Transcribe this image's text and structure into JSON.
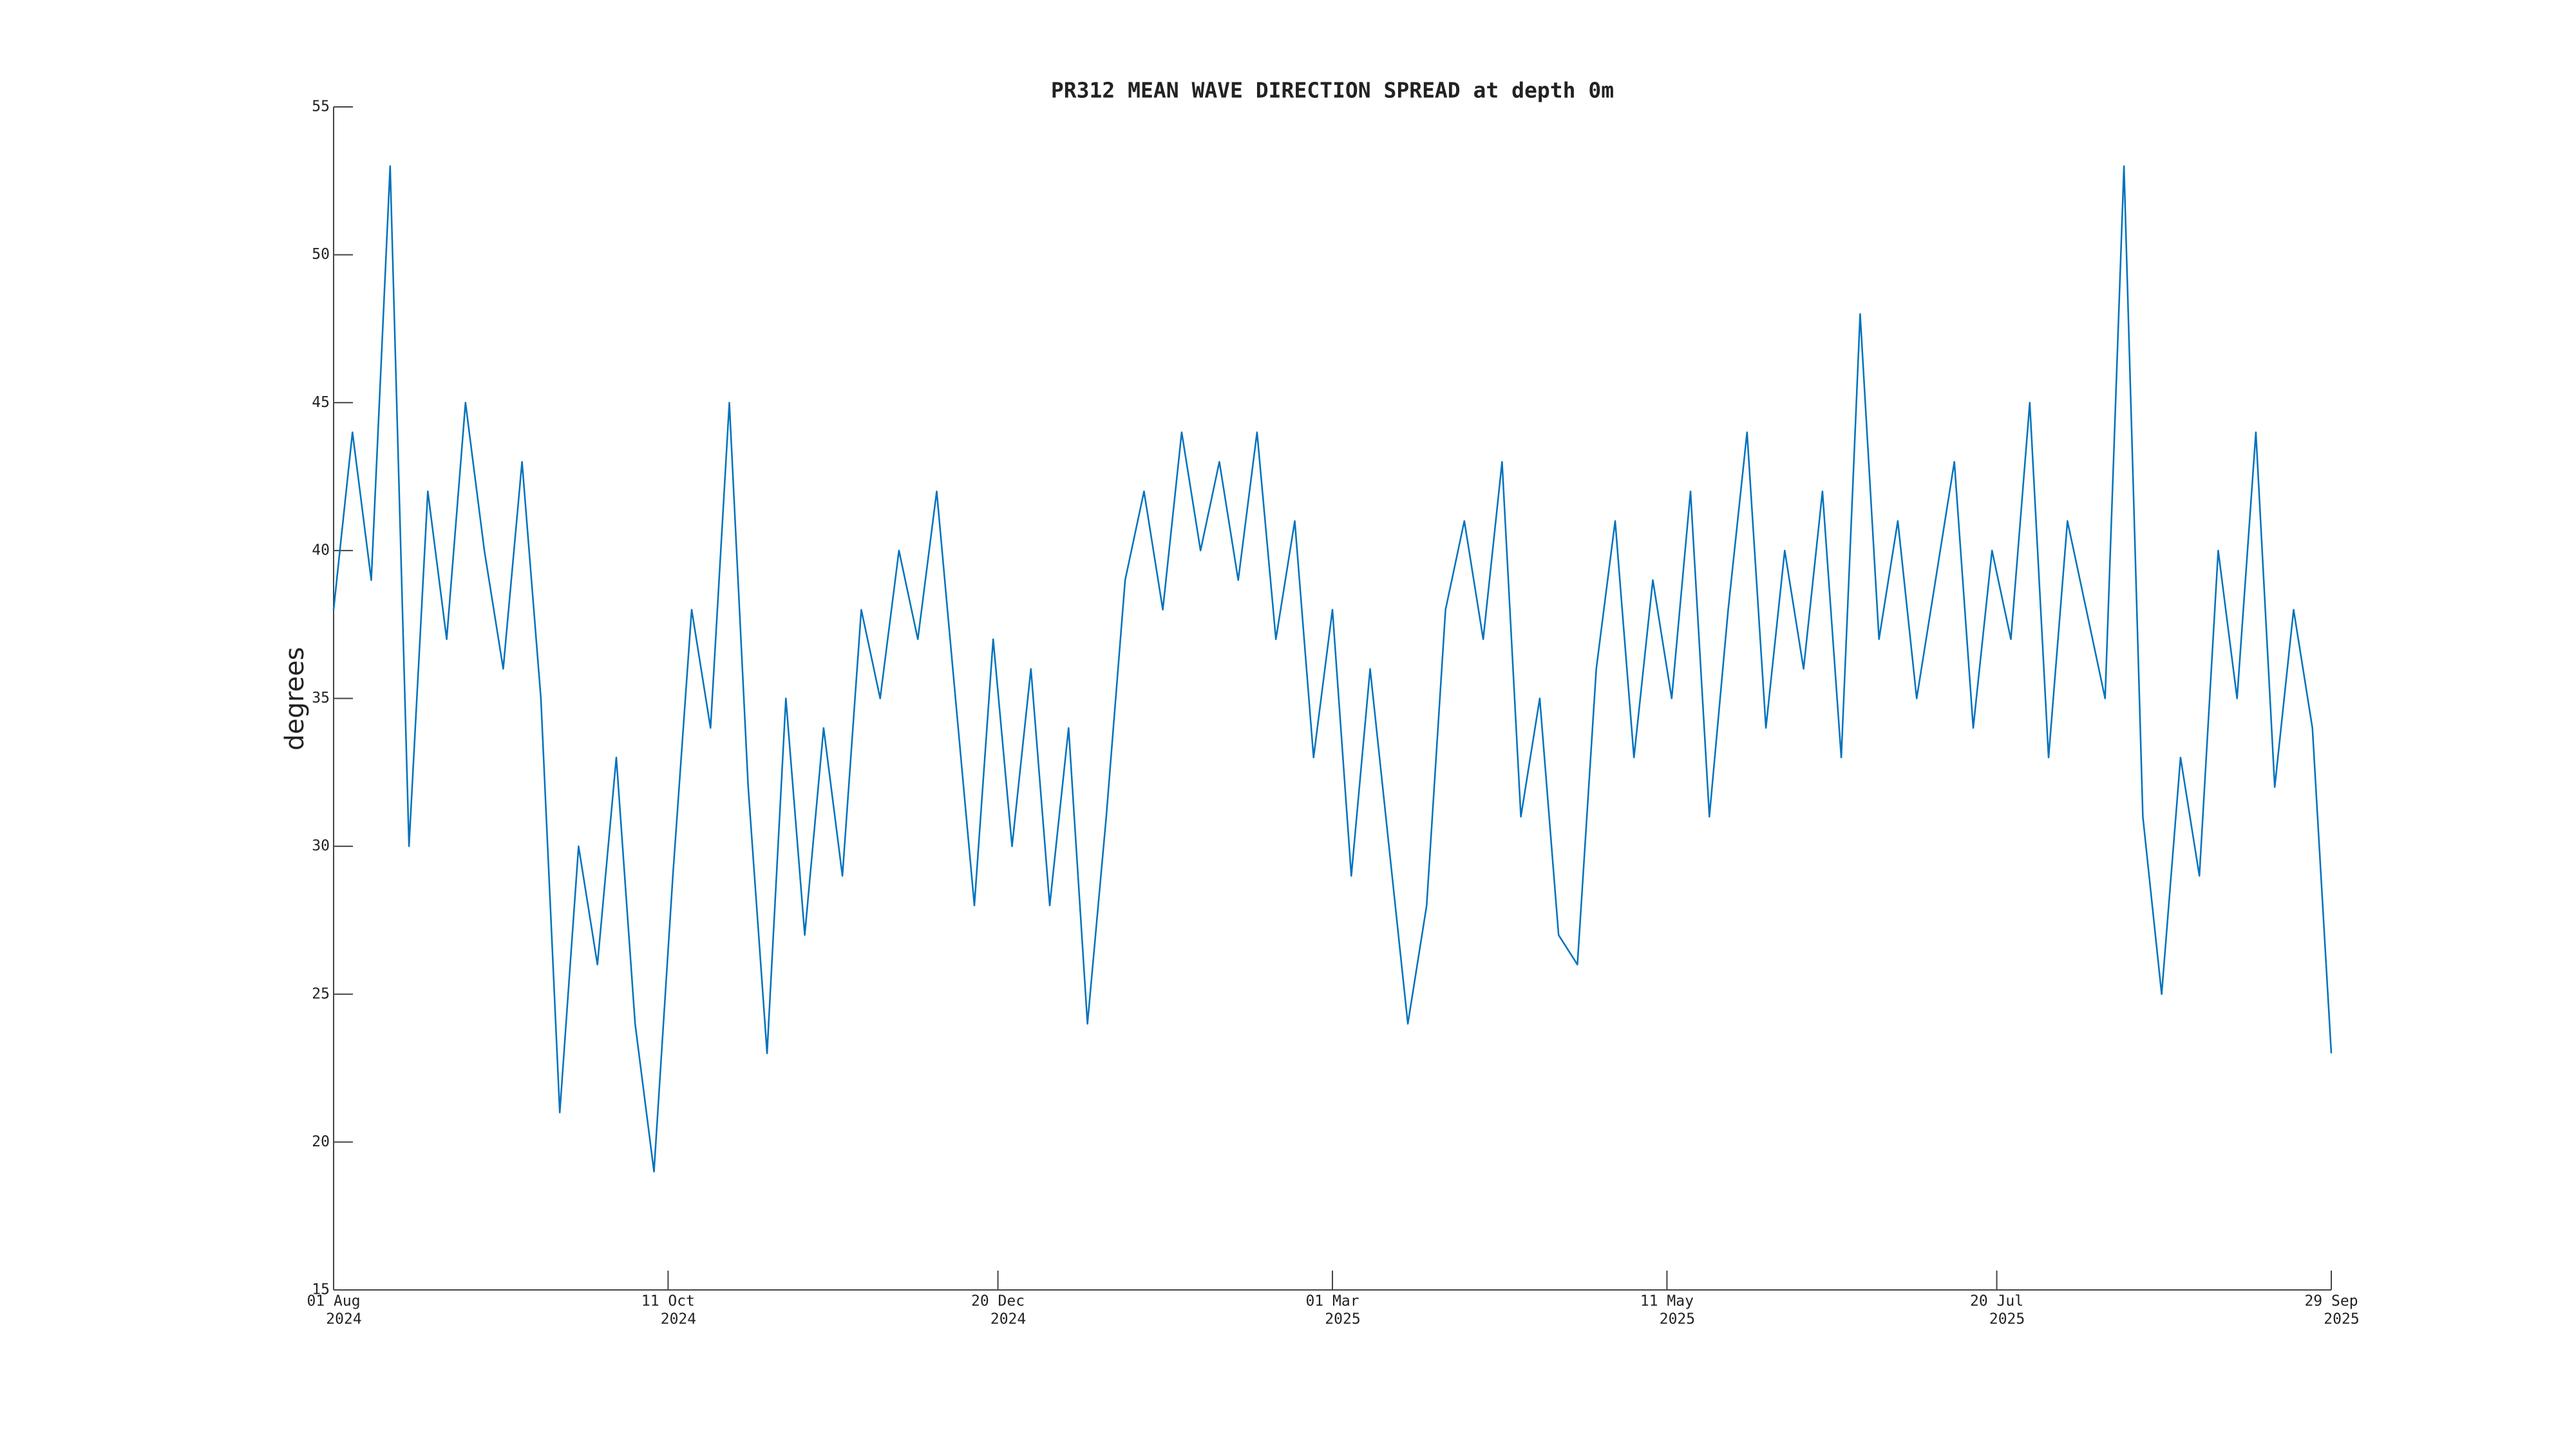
{
  "chart_data": {
    "type": "line",
    "title": "PR312 MEAN WAVE DIRECTION SPREAD at depth 0m",
    "y_label": "degrees",
    "x": [
      "2024-08-01",
      "2024-08-05",
      "2024-08-09",
      "2024-08-13",
      "2024-08-17",
      "2024-08-21",
      "2024-08-25",
      "2024-08-29",
      "2024-09-02",
      "2024-09-06",
      "2024-09-10",
      "2024-09-14",
      "2024-09-18",
      "2024-09-22",
      "2024-09-26",
      "2024-09-30",
      "2024-10-04",
      "2024-10-08",
      "2024-10-12",
      "2024-10-16",
      "2024-10-20",
      "2024-10-24",
      "2024-10-28",
      "2024-11-01",
      "2024-11-05",
      "2024-11-09",
      "2024-11-13",
      "2024-11-17",
      "2024-11-21",
      "2024-11-25",
      "2024-11-29",
      "2024-12-03",
      "2024-12-07",
      "2024-12-11",
      "2024-12-15",
      "2024-12-19",
      "2024-12-23",
      "2024-12-27",
      "2024-12-31",
      "2025-01-04",
      "2025-01-08",
      "2025-01-12",
      "2025-01-16",
      "2025-01-20",
      "2025-01-24",
      "2025-01-28",
      "2025-02-01",
      "2025-02-05",
      "2025-02-09",
      "2025-02-13",
      "2025-02-17",
      "2025-02-21",
      "2025-02-25",
      "2025-03-01",
      "2025-03-05",
      "2025-03-09",
      "2025-03-13",
      "2025-03-17",
      "2025-03-21",
      "2025-03-25",
      "2025-03-29",
      "2025-04-02",
      "2025-04-06",
      "2025-04-10",
      "2025-04-14",
      "2025-04-18",
      "2025-04-22",
      "2025-04-26",
      "2025-04-30",
      "2025-05-04",
      "2025-05-08",
      "2025-05-12",
      "2025-05-16",
      "2025-05-20",
      "2025-05-24",
      "2025-05-28",
      "2025-06-01",
      "2025-06-05",
      "2025-06-09",
      "2025-06-13",
      "2025-06-17",
      "2025-06-21",
      "2025-06-25",
      "2025-06-29",
      "2025-07-03",
      "2025-07-07",
      "2025-07-11",
      "2025-07-15",
      "2025-07-19",
      "2025-07-23",
      "2025-07-27",
      "2025-07-31",
      "2025-08-04",
      "2025-08-08",
      "2025-08-12",
      "2025-08-16",
      "2025-08-20",
      "2025-08-24",
      "2025-08-28",
      "2025-09-01",
      "2025-09-05",
      "2025-09-09",
      "2025-09-13",
      "2025-09-17",
      "2025-09-21",
      "2025-09-25",
      "2025-09-29"
    ],
    "series": [
      {
        "name": "degrees",
        "color": "#0072bd",
        "values": [
          38,
          44,
          39,
          53,
          30,
          42,
          37,
          45,
          40,
          36,
          43,
          35,
          21,
          30,
          26,
          33,
          24,
          19,
          29,
          38,
          34,
          45,
          32,
          23,
          35,
          27,
          34,
          29,
          38,
          35,
          40,
          37,
          42,
          35,
          28,
          37,
          30,
          36,
          28,
          34,
          24,
          31,
          39,
          42,
          38,
          44,
          40,
          43,
          39,
          44,
          37,
          41,
          33,
          38,
          29,
          36,
          30,
          24,
          28,
          38,
          41,
          37,
          43,
          31,
          35,
          27,
          26,
          36,
          41,
          33,
          39,
          35,
          42,
          31,
          38,
          44,
          34,
          40,
          36,
          42,
          33,
          48,
          37,
          41,
          35,
          39,
          43,
          34,
          40,
          37,
          45,
          33,
          41,
          38,
          35,
          53,
          31,
          25,
          33,
          29,
          40,
          35,
          44,
          32,
          38,
          34,
          23
        ]
      }
    ],
    "xlim": [
      "2024-08-01",
      "2025-09-29"
    ],
    "xticks": [
      {
        "value": "2024-08-01",
        "label": [
          "01 Aug",
          "2024"
        ]
      },
      {
        "value": "2024-10-11",
        "label": [
          "11 Oct",
          "2024"
        ]
      },
      {
        "value": "2024-12-20",
        "label": [
          "20 Dec",
          "2024"
        ]
      },
      {
        "value": "2025-03-01",
        "label": [
          "01 Mar",
          "2025"
        ]
      },
      {
        "value": "2025-05-11",
        "label": [
          "11 May",
          "2025"
        ]
      },
      {
        "value": "2025-07-20",
        "label": [
          "20 Jul",
          "2025"
        ]
      },
      {
        "value": "2025-09-29",
        "label": [
          "29 Sep",
          "2025"
        ]
      }
    ],
    "ylim": [
      15,
      55
    ],
    "yticks": [
      15,
      20,
      25,
      30,
      35,
      40,
      45,
      50,
      55
    ],
    "grid": false
  }
}
